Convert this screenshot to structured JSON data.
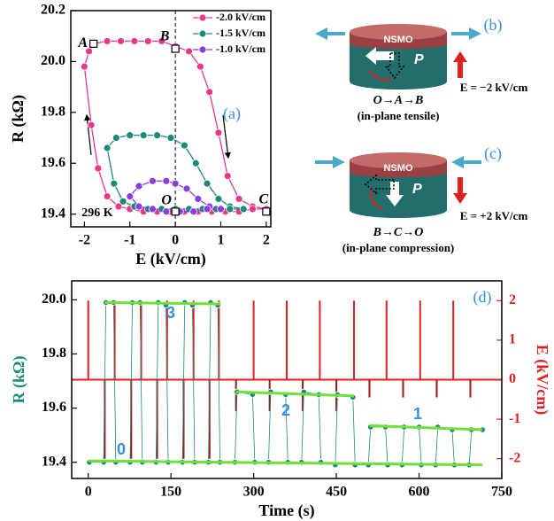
{
  "chart_data": [
    {
      "type": "line",
      "panel_label": "(a)",
      "xlabel": "E (kV/cm)",
      "ylabel": "R (kΩ)",
      "xlim": [
        -2.3,
        2.1
      ],
      "ylim": [
        19.35,
        20.2
      ],
      "xticks": [
        -2,
        -1,
        0,
        1,
        2
      ],
      "yticks": [
        19.4,
        19.6,
        19.8,
        {
          "value": 20.0,
          "label": "20.0"
        },
        20.2
      ],
      "legend": "upper right",
      "series": [
        {
          "name": "-2.0 kV/cm",
          "color": "#e8388a",
          "marker": true,
          "x": [
            -2,
            -1.9,
            -1.8,
            -1.5,
            -1.2,
            -0.9,
            -0.6,
            -0.3,
            0,
            0.3,
            0.55,
            0.75,
            0.95,
            1.15,
            1.4,
            1.7,
            2,
            1.7,
            1.4,
            1.1,
            0.8,
            0.5,
            0.2,
            -0.1,
            -0.4,
            -0.7,
            -1,
            -1.25,
            -1.5,
            -1.7,
            -1.85,
            -2
          ],
          "values": [
            19.98,
            20.04,
            20.07,
            20.08,
            20.08,
            20.08,
            20.08,
            20.08,
            20.06,
            20.04,
            19.98,
            19.88,
            19.72,
            19.55,
            19.46,
            19.43,
            19.42,
            19.42,
            19.41,
            19.41,
            19.41,
            19.41,
            19.41,
            19.41,
            19.41,
            19.41,
            19.42,
            19.43,
            19.47,
            19.58,
            19.75,
            19.98
          ]
        },
        {
          "name": "-1.5 kV/cm",
          "color": "#1a8a7a",
          "marker": true,
          "x": [
            -1.5,
            -1.3,
            -1,
            -0.7,
            -0.4,
            -0.1,
            0.2,
            0.45,
            0.7,
            0.95,
            1.2,
            1.5,
            1.2,
            0.9,
            0.6,
            0.3,
            0,
            -0.3,
            -0.6,
            -0.9,
            -1.15,
            -1.35,
            -1.5
          ],
          "values": [
            19.66,
            19.7,
            19.71,
            19.71,
            19.71,
            19.7,
            19.67,
            19.6,
            19.52,
            19.46,
            19.43,
            19.42,
            19.42,
            19.42,
            19.42,
            19.42,
            19.42,
            19.42,
            19.42,
            19.43,
            19.45,
            19.52,
            19.66
          ]
        },
        {
          "name": "-1.0 kV/cm",
          "color": "#8a3ee0",
          "marker": true,
          "x": [
            -1,
            -0.8,
            -0.5,
            -0.2,
            0,
            0.25,
            0.5,
            0.75,
            1,
            0.7,
            0.4,
            0.1,
            -0.2,
            -0.5,
            -0.8,
            -1
          ],
          "values": [
            19.47,
            19.51,
            19.53,
            19.53,
            19.52,
            19.5,
            19.46,
            19.43,
            19.42,
            19.42,
            19.41,
            19.41,
            19.41,
            19.42,
            19.43,
            19.47
          ]
        }
      ],
      "points": {
        "x": [
          -1.8,
          0,
          0,
          2
        ],
        "values": [
          20.07,
          20.05,
          19.41,
          19.41
        ],
        "labels": [
          "A",
          "B",
          "O",
          "C"
        ]
      },
      "annotations": [
        "296 K"
      ]
    },
    {
      "type": "line",
      "panel_label": "(d)",
      "xlabel": "Time (s)",
      "ylabel": "R (kΩ)",
      "y2label": "E (kV/cm)",
      "xlim": [
        -30,
        750
      ],
      "ylim": [
        19.34,
        20.07
      ],
      "y2lim": [
        -2.5,
        2.5
      ],
      "xticks": [
        0,
        150,
        300,
        450,
        600,
        750
      ],
      "yticks": [
        19.4,
        19.6,
        19.8,
        {
          "value": 20.0,
          "label": "20.0"
        }
      ],
      "y2ticks": [
        -2,
        -1,
        0,
        1,
        2
      ],
      "series": [
        {
          "axis": "y2",
          "color": "#e02020",
          "style": "stem",
          "x": [
            0,
            30,
            48,
            78,
            96,
            125,
            143,
            173,
            191,
            220,
            237,
            268,
            300,
            329,
            360,
            389,
            420,
            450,
            482,
            510,
            541,
            571,
            602,
            632,
            662,
            693
          ],
          "values": [
            2,
            -2,
            2,
            -2,
            2,
            -2,
            2,
            -2,
            2,
            -2,
            2,
            -0.8,
            2,
            -0.8,
            2,
            -0.8,
            2,
            -0.8,
            2,
            -0.45,
            2,
            -0.45,
            2,
            -0.45,
            2,
            -0.45
          ]
        },
        {
          "color": "#1a8a7a",
          "marker": true,
          "x": [
            2,
            28,
            32,
            46,
            50,
            76,
            80,
            94,
            98,
            123,
            127,
            141,
            145,
            171,
            175,
            189,
            193,
            218,
            222,
            235,
            239,
            266,
            270,
            298,
            302,
            327,
            331,
            358,
            362,
            387,
            391,
            418,
            422,
            448,
            452,
            480,
            484,
            508,
            512,
            539,
            543,
            569,
            573,
            600,
            604,
            630,
            634,
            660,
            664,
            691,
            695,
            715
          ],
          "values": [
            19.4,
            19.4,
            19.99,
            19.99,
            19.4,
            19.4,
            19.99,
            19.99,
            19.4,
            19.4,
            19.99,
            19.98,
            19.4,
            19.4,
            19.99,
            19.98,
            19.4,
            19.4,
            19.99,
            19.98,
            19.4,
            19.4,
            19.66,
            19.65,
            19.4,
            19.4,
            19.66,
            19.65,
            19.4,
            19.4,
            19.66,
            19.65,
            19.4,
            19.39,
            19.65,
            19.64,
            19.39,
            19.39,
            19.53,
            19.53,
            19.39,
            19.39,
            19.53,
            19.53,
            19.39,
            19.39,
            19.53,
            19.52,
            19.39,
            19.39,
            19.52,
            19.52
          ]
        },
        {
          "color": "#6fe03a",
          "x": [
            30,
            240
          ],
          "values": [
            19.99,
            19.985
          ]
        },
        {
          "color": "#6fe03a",
          "x": [
            268,
            482
          ],
          "values": [
            19.66,
            19.645
          ]
        },
        {
          "color": "#6fe03a",
          "x": [
            510,
            715
          ],
          "values": [
            19.535,
            19.52
          ]
        },
        {
          "color": "#6fe03a",
          "x": [
            0,
            715
          ],
          "values": [
            19.405,
            19.39
          ]
        }
      ],
      "annotations": [
        "3",
        "2",
        "1",
        "0"
      ]
    }
  ],
  "diagrams": [
    {
      "label": "(b)",
      "layer": "NSMO",
      "polarization": "P",
      "field": "E = −2 kV/cm",
      "path": "O→A→B",
      "strain": "(in-plane tensile)"
    },
    {
      "label": "(c)",
      "layer": "NSMO",
      "polarization": "P",
      "field": "E = +2 kV/cm",
      "path": "B→C→O",
      "strain": "(in-plane compression)"
    }
  ]
}
